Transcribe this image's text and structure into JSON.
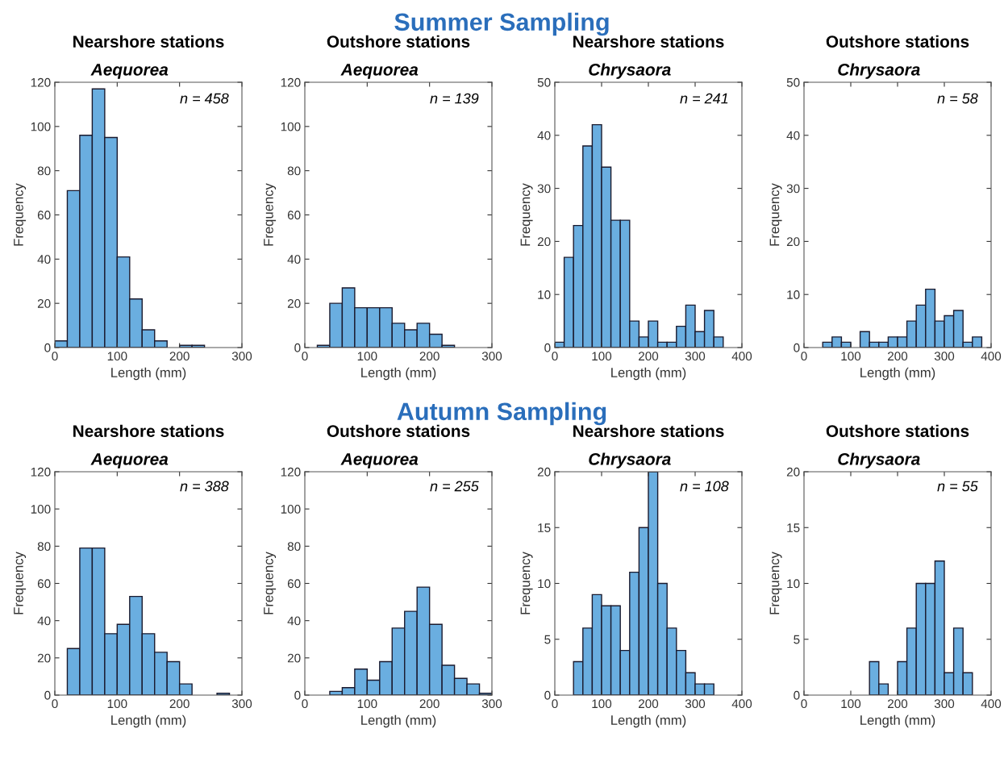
{
  "chart_data": [
    {
      "type": "histogram",
      "title": "Nearshore stations",
      "subtitle": "Aequorea",
      "xlabel": "Length (mm)",
      "ylabel": "Frequency",
      "annotations": [
        "Summer Sampling",
        "n = 458"
      ],
      "color": "#6aaee0",
      "bins": [
        0,
        20,
        40,
        60,
        80,
        100,
        120,
        140,
        160,
        180,
        200,
        220,
        240
      ],
      "values": [
        3,
        71,
        96,
        117,
        95,
        41,
        22,
        8,
        3,
        0,
        1,
        1
      ],
      "xlim": [
        0,
        300
      ],
      "xticks": [
        0,
        100,
        200,
        300
      ],
      "ylim": [
        0,
        120
      ],
      "yticks": [
        0,
        20,
        40,
        60,
        80,
        100,
        120
      ]
    },
    {
      "type": "histogram",
      "title": "Outshore stations",
      "subtitle": "Aequorea",
      "xlabel": "Length (mm)",
      "ylabel": "Frequency",
      "annotations": [
        "n = 139"
      ],
      "color": "#6aaee0",
      "bins": [
        20,
        40,
        60,
        80,
        100,
        120,
        140,
        160,
        180,
        200,
        220,
        240
      ],
      "values": [
        1,
        20,
        27,
        18,
        18,
        18,
        11,
        8,
        11,
        6,
        1
      ],
      "xlim": [
        0,
        300
      ],
      "xticks": [
        0,
        100,
        200,
        300
      ],
      "ylim": [
        0,
        120
      ],
      "yticks": [
        0,
        20,
        40,
        60,
        80,
        100,
        120
      ]
    },
    {
      "type": "histogram",
      "title": "Nearshore stations",
      "subtitle": "Chrysaora",
      "xlabel": "Length (mm)",
      "ylabel": "Frequency",
      "annotations": [
        "n = 241"
      ],
      "color": "#6aaee0",
      "bins": [
        0,
        20,
        40,
        60,
        80,
        100,
        120,
        140,
        160,
        180,
        200,
        220,
        240,
        260,
        280,
        300,
        320,
        340,
        360
      ],
      "values": [
        1,
        17,
        23,
        38,
        42,
        34,
        24,
        24,
        5,
        2,
        5,
        1,
        1,
        4,
        8,
        3,
        7,
        2
      ],
      "xlim": [
        0,
        400
      ],
      "xticks": [
        0,
        100,
        200,
        300,
        400
      ],
      "ylim": [
        0,
        50
      ],
      "yticks": [
        0,
        10,
        20,
        30,
        40,
        50
      ]
    },
    {
      "type": "histogram",
      "title": "Outshore stations",
      "subtitle": "Chrysaora",
      "xlabel": "Length (mm)",
      "ylabel": "Frequency",
      "annotations": [
        "n = 58"
      ],
      "color": "#6aaee0",
      "bins": [
        40,
        60,
        80,
        100,
        120,
        140,
        160,
        180,
        200,
        220,
        240,
        260,
        280,
        300,
        320,
        340,
        360,
        380
      ],
      "values": [
        1,
        2,
        1,
        0,
        3,
        1,
        1,
        2,
        2,
        5,
        8,
        11,
        5,
        6,
        7,
        1,
        2
      ],
      "xlim": [
        0,
        400
      ],
      "xticks": [
        0,
        100,
        200,
        300,
        400
      ],
      "ylim": [
        0,
        50
      ],
      "yticks": [
        0,
        10,
        20,
        30,
        40,
        50
      ]
    },
    {
      "type": "histogram",
      "title": "Nearshore stations",
      "subtitle": "Aequorea",
      "xlabel": "Length (mm)",
      "ylabel": "Frequency",
      "annotations": [
        "Autumn Sampling",
        "n = 388"
      ],
      "color": "#6aaee0",
      "bins": [
        20,
        40,
        60,
        80,
        100,
        120,
        140,
        160,
        180,
        200,
        220,
        240,
        260,
        280
      ],
      "values": [
        25,
        79,
        79,
        33,
        38,
        53,
        33,
        23,
        18,
        6,
        0,
        0,
        1
      ],
      "xlim": [
        0,
        300
      ],
      "xticks": [
        0,
        100,
        200,
        300
      ],
      "ylim": [
        0,
        120
      ],
      "yticks": [
        0,
        20,
        40,
        60,
        80,
        100,
        120
      ]
    },
    {
      "type": "histogram",
      "title": "Outshore stations",
      "subtitle": "Aequorea",
      "xlabel": "Length (mm)",
      "ylabel": "Frequency",
      "annotations": [
        "n = 255"
      ],
      "color": "#6aaee0",
      "bins": [
        40,
        60,
        80,
        100,
        120,
        140,
        160,
        180,
        200,
        220,
        240,
        260,
        280,
        300
      ],
      "values": [
        2,
        4,
        14,
        8,
        18,
        36,
        45,
        58,
        38,
        16,
        9,
        6,
        1
      ],
      "xlim": [
        0,
        300
      ],
      "xticks": [
        0,
        100,
        200,
        300
      ],
      "ylim": [
        0,
        120
      ],
      "yticks": [
        0,
        20,
        40,
        60,
        80,
        100,
        120
      ]
    },
    {
      "type": "histogram",
      "title": "Nearshore stations",
      "subtitle": "Chrysaora",
      "xlabel": "Length (mm)",
      "ylabel": "Frequency",
      "annotations": [
        "n = 108"
      ],
      "color": "#6aaee0",
      "bins": [
        40,
        60,
        80,
        100,
        120,
        140,
        160,
        180,
        200,
        220,
        240,
        260,
        280,
        300,
        320,
        340
      ],
      "values": [
        3,
        6,
        9,
        8,
        8,
        4,
        11,
        15,
        20,
        10,
        6,
        4,
        2,
        1,
        1
      ],
      "xlim": [
        0,
        400
      ],
      "xticks": [
        0,
        100,
        200,
        300,
        400
      ],
      "ylim": [
        0,
        20
      ],
      "yticks": [
        0,
        5,
        10,
        15,
        20
      ]
    },
    {
      "type": "histogram",
      "title": "Outshore stations",
      "subtitle": "Chrysaora",
      "xlabel": "Length (mm)",
      "ylabel": "Frequency",
      "annotations": [
        "n = 55"
      ],
      "color": "#6aaee0",
      "bins": [
        140,
        160,
        180,
        200,
        220,
        240,
        260,
        280,
        300,
        320,
        340,
        360
      ],
      "values": [
        3,
        1,
        0,
        3,
        6,
        10,
        10,
        12,
        2,
        6,
        2
      ],
      "xlim": [
        0,
        400
      ],
      "xticks": [
        0,
        100,
        200,
        300,
        400
      ],
      "ylim": [
        0,
        20
      ],
      "yticks": [
        0,
        5,
        10,
        15,
        20
      ]
    }
  ]
}
